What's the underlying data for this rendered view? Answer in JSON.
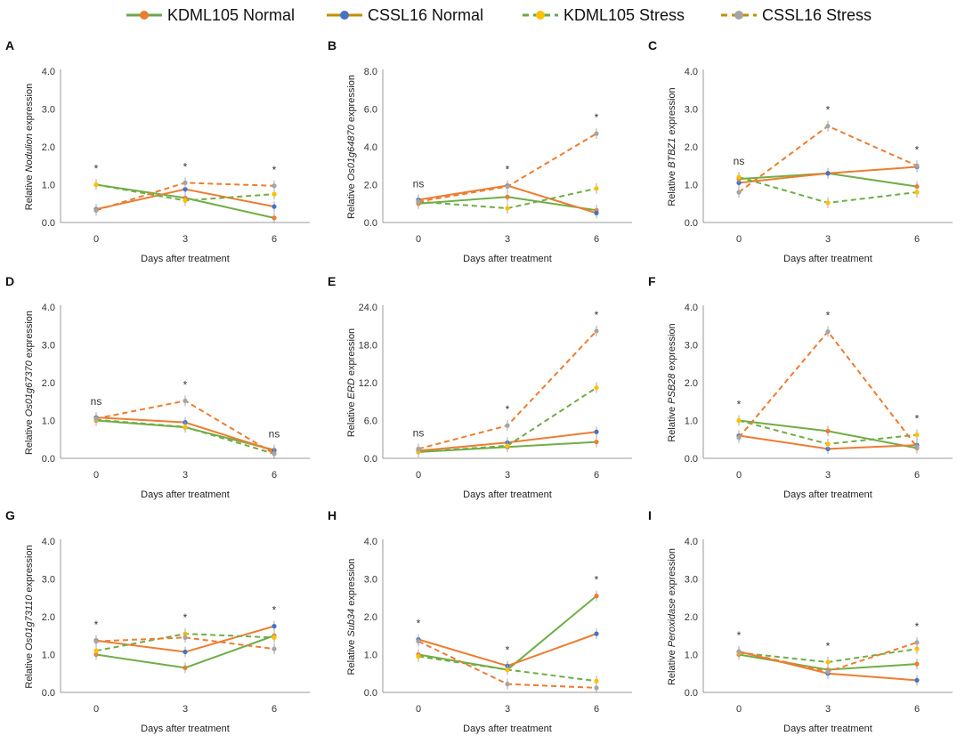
{
  "legend": [
    {
      "label": "KDML105 Normal",
      "color": "#6aa84f",
      "marker": "#ed7d31",
      "dash": false
    },
    {
      "label": "CSSL16 Normal",
      "color": "#bf9000",
      "marker": "#4472c4",
      "dash": false
    },
    {
      "label": "KDML105 Stress",
      "color": "#6aa84f",
      "marker": "#ffc000",
      "dash": true
    },
    {
      "label": "CSSL16 Stress",
      "color": "#bf9000",
      "marker": "#a5a5a5",
      "dash": true
    }
  ],
  "series_colors": {
    "KDML105 Normal": "#70ad47",
    "CSSL16 Normal": "#ed7d31",
    "KDML105 Stress": "#70ad47",
    "CSSL16 Stress": "#ed7d31"
  },
  "chart_data": [
    {
      "type": "line",
      "panel": "A",
      "gene": "Nodulion",
      "ylabel_prefix": "Relative ",
      "ylabel_suffix": " expression",
      "xlabel": "Days after treatment",
      "x": [
        0,
        3,
        6
      ],
      "ylim": [
        0,
        4
      ],
      "yticks": [
        "0.0",
        "1.0",
        "2.0",
        "3.0",
        "4.0"
      ],
      "series": [
        {
          "name": "KDML105 Normal",
          "values": [
            1.0,
            0.65,
            0.12
          ]
        },
        {
          "name": "CSSL16 Normal",
          "values": [
            0.35,
            0.88,
            0.42
          ]
        },
        {
          "name": "KDML105 Stress",
          "values": [
            1.0,
            0.58,
            0.75
          ]
        },
        {
          "name": "CSSL16 Stress",
          "values": [
            0.32,
            1.05,
            0.97
          ]
        }
      ],
      "significance": [
        "*",
        "*",
        "*"
      ]
    },
    {
      "type": "line",
      "panel": "B",
      "gene": "Os01g64870",
      "ylabel_prefix": "Relative ",
      "ylabel_suffix": " expression",
      "xlabel": "Days after treatment",
      "x": [
        0,
        3,
        6
      ],
      "ylim": [
        0,
        8
      ],
      "yticks": [
        "0.0",
        "2.0",
        "4.0",
        "6.0",
        "8.0"
      ],
      "series": [
        {
          "name": "KDML105 Normal",
          "values": [
            1.0,
            1.35,
            0.65
          ]
        },
        {
          "name": "CSSL16 Normal",
          "values": [
            1.2,
            1.95,
            0.5
          ]
        },
        {
          "name": "KDML105 Stress",
          "values": [
            1.1,
            0.75,
            1.8
          ]
        },
        {
          "name": "CSSL16 Stress",
          "values": [
            1.1,
            1.9,
            4.7
          ]
        }
      ],
      "significance": [
        "ns",
        "*",
        "*"
      ]
    },
    {
      "type": "line",
      "panel": "C",
      "gene": "BTBZ1",
      "ylabel_prefix": "Relative ",
      "ylabel_suffix": " expression",
      "xlabel": "Days after treatment",
      "x": [
        0,
        3,
        6
      ],
      "ylim": [
        0,
        4
      ],
      "yticks": [
        "0.0",
        "1.0",
        "2.0",
        "3.0",
        "4.0"
      ],
      "series": [
        {
          "name": "KDML105 Normal",
          "values": [
            1.15,
            1.3,
            0.95
          ]
        },
        {
          "name": "CSSL16 Normal",
          "values": [
            1.05,
            1.3,
            1.47
          ]
        },
        {
          "name": "KDML105 Stress",
          "values": [
            1.2,
            0.52,
            0.8
          ]
        },
        {
          "name": "CSSL16 Stress",
          "values": [
            0.8,
            2.55,
            1.5
          ]
        }
      ],
      "significance": [
        "ns",
        "*",
        "*"
      ]
    },
    {
      "type": "line",
      "panel": "D",
      "gene": "Os01g67370",
      "ylabel_prefix": "Relative ",
      "ylabel_suffix": " expression",
      "xlabel": "Days after treatment",
      "x": [
        0,
        3,
        6
      ],
      "ylim": [
        0,
        4
      ],
      "yticks": [
        "0.0",
        "1.0",
        "2.0",
        "3.0",
        "4.0"
      ],
      "series": [
        {
          "name": "KDML105 Normal",
          "values": [
            1.0,
            0.82,
            0.22
          ]
        },
        {
          "name": "CSSL16 Normal",
          "values": [
            1.08,
            0.95,
            0.2
          ]
        },
        {
          "name": "KDML105 Stress",
          "values": [
            1.02,
            0.83,
            0.12
          ]
        },
        {
          "name": "CSSL16 Stress",
          "values": [
            1.05,
            1.52,
            0.12
          ]
        }
      ],
      "significance": [
        "ns",
        "*",
        "ns"
      ]
    },
    {
      "type": "line",
      "panel": "E",
      "gene": "ERD",
      "ylabel_prefix": "Relative ",
      "ylabel_suffix": " expression",
      "xlabel": "Days after treatment",
      "x": [
        0,
        3,
        6
      ],
      "ylim": [
        0,
        24
      ],
      "yticks": [
        "0.0",
        "6.0",
        "12.0",
        "18.0",
        "24.0"
      ],
      "series": [
        {
          "name": "KDML105 Normal",
          "values": [
            1.0,
            1.8,
            2.6
          ]
        },
        {
          "name": "CSSL16 Normal",
          "values": [
            1.2,
            2.5,
            4.2
          ]
        },
        {
          "name": "KDML105 Stress",
          "values": [
            1.0,
            2.0,
            11.2
          ]
        },
        {
          "name": "CSSL16 Stress",
          "values": [
            1.5,
            5.2,
            20.2
          ]
        }
      ],
      "significance": [
        "ns",
        "*",
        "*"
      ]
    },
    {
      "type": "line",
      "panel": "F",
      "gene": "PSB28",
      "ylabel_prefix": "Relative ",
      "ylabel_suffix": " expression",
      "xlabel": "Days after treatment",
      "x": [
        0,
        3,
        6
      ],
      "ylim": [
        0,
        4
      ],
      "yticks": [
        "0.0",
        "1.0",
        "2.0",
        "3.0",
        "4.0"
      ],
      "series": [
        {
          "name": "KDML105 Normal",
          "values": [
            1.0,
            0.72,
            0.27
          ]
        },
        {
          "name": "CSSL16 Normal",
          "values": [
            0.6,
            0.25,
            0.35
          ]
        },
        {
          "name": "KDML105 Stress",
          "values": [
            1.0,
            0.38,
            0.62
          ]
        },
        {
          "name": "CSSL16 Stress",
          "values": [
            0.55,
            3.35,
            0.3
          ]
        }
      ],
      "significance": [
        "*",
        "*",
        "*"
      ]
    },
    {
      "type": "line",
      "panel": "G",
      "gene": "Os01g73110",
      "ylabel_prefix": "Relative ",
      "ylabel_suffix": " expression",
      "xlabel": "Days after treatment",
      "x": [
        0,
        3,
        6
      ],
      "ylim": [
        0,
        4
      ],
      "yticks": [
        "0.0",
        "1.0",
        "2.0",
        "3.0",
        "4.0"
      ],
      "series": [
        {
          "name": "KDML105 Normal",
          "values": [
            1.0,
            0.65,
            1.5
          ]
        },
        {
          "name": "CSSL16 Normal",
          "values": [
            1.37,
            1.07,
            1.75
          ]
        },
        {
          "name": "KDML105 Stress",
          "values": [
            1.1,
            1.55,
            1.45
          ]
        },
        {
          "name": "CSSL16 Stress",
          "values": [
            1.35,
            1.45,
            1.15
          ]
        }
      ],
      "significance": [
        "*",
        "*",
        "*"
      ]
    },
    {
      "type": "line",
      "panel": "H",
      "gene": "Sub34",
      "ylabel_prefix": "Relative ",
      "ylabel_suffix": " expression",
      "xlabel": "Days after treatment",
      "x": [
        0,
        3,
        6
      ],
      "ylim": [
        0,
        4
      ],
      "yticks": [
        "0.0",
        "1.0",
        "2.0",
        "3.0",
        "4.0"
      ],
      "series": [
        {
          "name": "KDML105 Normal",
          "values": [
            1.0,
            0.6,
            2.55
          ]
        },
        {
          "name": "CSSL16 Normal",
          "values": [
            1.4,
            0.7,
            1.55
          ]
        },
        {
          "name": "KDML105 Stress",
          "values": [
            0.95,
            0.6,
            0.3
          ]
        },
        {
          "name": "CSSL16 Stress",
          "values": [
            1.35,
            0.22,
            0.12
          ]
        }
      ],
      "significance": [
        "*",
        "*",
        "*"
      ]
    },
    {
      "type": "line",
      "panel": "I",
      "gene": "Peroxidase",
      "ylabel_prefix": "Relative ",
      "ylabel_suffix": " expression",
      "xlabel": "Days after treatment",
      "x": [
        0,
        3,
        6
      ],
      "ylim": [
        0,
        4
      ],
      "yticks": [
        "0.0",
        "1.0",
        "2.0",
        "3.0",
        "4.0"
      ],
      "series": [
        {
          "name": "KDML105 Normal",
          "values": [
            1.0,
            0.6,
            0.75
          ]
        },
        {
          "name": "CSSL16 Normal",
          "values": [
            1.08,
            0.5,
            0.32
          ]
        },
        {
          "name": "KDML105 Stress",
          "values": [
            1.05,
            0.8,
            1.15
          ]
        },
        {
          "name": "CSSL16 Stress",
          "values": [
            1.08,
            0.55,
            1.32
          ]
        }
      ],
      "significance": [
        "*",
        "*",
        "*"
      ]
    }
  ]
}
